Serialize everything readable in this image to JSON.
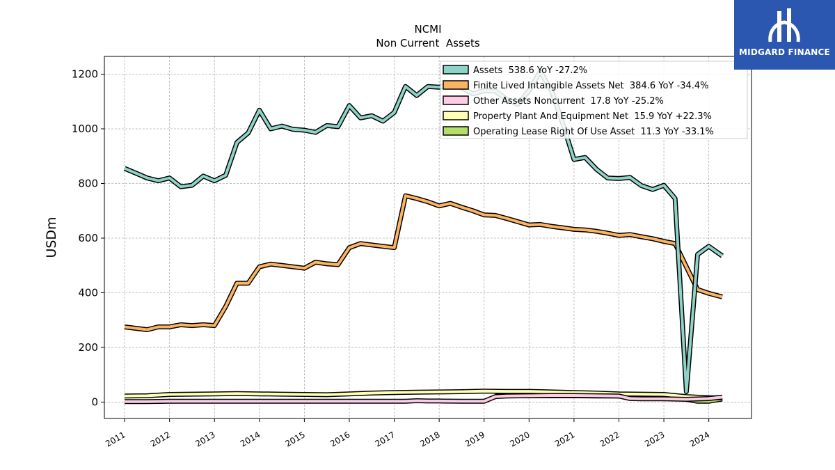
{
  "chart_data": {
    "type": "line",
    "title": "NCMI",
    "subtitle": "Non Current  Assets",
    "ylabel": "USDm",
    "xlabel": "",
    "xlim": [
      2010.55,
      2024.95
    ],
    "ylim": [
      -60,
      1265
    ],
    "yticks": [
      0,
      200,
      400,
      600,
      800,
      1000,
      1200
    ],
    "xticks": [
      "2011",
      "2012",
      "2013",
      "2014",
      "2015",
      "2016",
      "2017",
      "2018",
      "2019",
      "2020",
      "2021",
      "2022",
      "2023",
      "2024"
    ],
    "grid": true,
    "legend_position": "top-right",
    "series": [
      {
        "name": "Assets  538.6 YoY -27.2%",
        "color": "#8dd3c7",
        "points": [
          [
            2011.0,
            855
          ],
          [
            2011.25,
            838
          ],
          [
            2011.5,
            820
          ],
          [
            2011.75,
            810
          ],
          [
            2012.0,
            820
          ],
          [
            2012.25,
            788
          ],
          [
            2012.5,
            793
          ],
          [
            2012.75,
            827
          ],
          [
            2013.0,
            810
          ],
          [
            2013.25,
            830
          ],
          [
            2013.5,
            950
          ],
          [
            2013.75,
            985
          ],
          [
            2014.0,
            1068
          ],
          [
            2014.25,
            1000
          ],
          [
            2014.5,
            1010
          ],
          [
            2014.75,
            998
          ],
          [
            2015.0,
            995
          ],
          [
            2015.25,
            987
          ],
          [
            2015.5,
            1012
          ],
          [
            2015.75,
            1008
          ],
          [
            2016.0,
            1085
          ],
          [
            2016.25,
            1040
          ],
          [
            2016.5,
            1048
          ],
          [
            2016.75,
            1028
          ],
          [
            2017.0,
            1060
          ],
          [
            2017.25,
            1155
          ],
          [
            2017.5,
            1122
          ],
          [
            2017.75,
            1155
          ],
          [
            2018.0,
            1152
          ],
          [
            2018.25,
            1165
          ],
          [
            2018.5,
            1150
          ],
          [
            2018.75,
            1128
          ],
          [
            2019.0,
            1140
          ],
          [
            2019.25,
            1138
          ],
          [
            2019.5,
            1108
          ],
          [
            2019.75,
            1090
          ],
          [
            2020.0,
            1140
          ],
          [
            2020.25,
            1210
          ],
          [
            2020.5,
            1140
          ],
          [
            2020.75,
            1020
          ],
          [
            2021.0,
            888
          ],
          [
            2021.25,
            895
          ],
          [
            2021.5,
            852
          ],
          [
            2021.75,
            820
          ],
          [
            2022.0,
            818
          ],
          [
            2022.25,
            822
          ],
          [
            2022.5,
            792
          ],
          [
            2022.75,
            778
          ],
          [
            2023.0,
            793
          ],
          [
            2023.25,
            745
          ],
          [
            2023.5,
            38
          ],
          [
            2023.75,
            540
          ],
          [
            2024.0,
            570
          ],
          [
            2024.3,
            535
          ]
        ]
      },
      {
        "name": "Finite Lived Intangible Assets Net  384.6 YoY -34.4%",
        "color": "#fdb462",
        "points": [
          [
            2011.0,
            275
          ],
          [
            2011.25,
            270
          ],
          [
            2011.5,
            265
          ],
          [
            2011.75,
            275
          ],
          [
            2012.0,
            275
          ],
          [
            2012.25,
            283
          ],
          [
            2012.5,
            280
          ],
          [
            2012.75,
            283
          ],
          [
            2013.0,
            280
          ],
          [
            2013.25,
            350
          ],
          [
            2013.5,
            435
          ],
          [
            2013.75,
            435
          ],
          [
            2014.0,
            495
          ],
          [
            2014.25,
            505
          ],
          [
            2014.5,
            500
          ],
          [
            2014.75,
            495
          ],
          [
            2015.0,
            490
          ],
          [
            2015.25,
            512
          ],
          [
            2015.5,
            506
          ],
          [
            2015.75,
            503
          ],
          [
            2016.0,
            565
          ],
          [
            2016.25,
            580
          ],
          [
            2016.5,
            575
          ],
          [
            2016.75,
            570
          ],
          [
            2017.0,
            565
          ],
          [
            2017.25,
            755
          ],
          [
            2017.5,
            745
          ],
          [
            2017.75,
            733
          ],
          [
            2018.0,
            718
          ],
          [
            2018.25,
            727
          ],
          [
            2018.5,
            713
          ],
          [
            2018.75,
            700
          ],
          [
            2019.0,
            685
          ],
          [
            2019.25,
            683
          ],
          [
            2019.5,
            672
          ],
          [
            2019.75,
            660
          ],
          [
            2020.0,
            648
          ],
          [
            2020.25,
            650
          ],
          [
            2020.5,
            643
          ],
          [
            2020.75,
            638
          ],
          [
            2021.0,
            632
          ],
          [
            2021.25,
            630
          ],
          [
            2021.5,
            625
          ],
          [
            2021.75,
            618
          ],
          [
            2022.0,
            610
          ],
          [
            2022.25,
            613
          ],
          [
            2022.5,
            605
          ],
          [
            2022.75,
            598
          ],
          [
            2023.0,
            588
          ],
          [
            2023.25,
            580
          ],
          [
            2023.5,
            495
          ],
          [
            2023.75,
            412
          ],
          [
            2024.0,
            398
          ],
          [
            2024.3,
            385
          ]
        ]
      },
      {
        "name": "Other Assets Noncurrent  17.8 YoY -25.2%",
        "color": "#fccde5",
        "points": [
          [
            2011.0,
            2
          ],
          [
            2011.5,
            2
          ],
          [
            2012.0,
            3
          ],
          [
            2012.5,
            3
          ],
          [
            2013.0,
            3
          ],
          [
            2013.5,
            3
          ],
          [
            2014.0,
            3
          ],
          [
            2014.5,
            3
          ],
          [
            2015.0,
            3
          ],
          [
            2015.5,
            3
          ],
          [
            2016.0,
            3
          ],
          [
            2016.5,
            3
          ],
          [
            2017.0,
            3
          ],
          [
            2017.25,
            3
          ],
          [
            2017.5,
            5
          ],
          [
            2017.75,
            4
          ],
          [
            2018.0,
            4
          ],
          [
            2018.5,
            3
          ],
          [
            2019.0,
            3
          ],
          [
            2019.25,
            20
          ],
          [
            2019.5,
            22
          ],
          [
            2020.0,
            23
          ],
          [
            2020.5,
            24
          ],
          [
            2021.0,
            24
          ],
          [
            2021.5,
            23
          ],
          [
            2022.0,
            22
          ],
          [
            2022.25,
            13
          ],
          [
            2022.5,
            12
          ],
          [
            2023.0,
            12
          ],
          [
            2023.5,
            10
          ],
          [
            2024.0,
            13
          ],
          [
            2024.3,
            18
          ]
        ]
      },
      {
        "name": "Property Plant And Equipment Net  15.9 YoY +22.3%",
        "color": "#ffffb3",
        "points": [
          [
            2011.0,
            22
          ],
          [
            2011.5,
            23
          ],
          [
            2012.0,
            28
          ],
          [
            2012.5,
            29
          ],
          [
            2013.0,
            30
          ],
          [
            2013.5,
            31
          ],
          [
            2014.0,
            30
          ],
          [
            2014.5,
            29
          ],
          [
            2015.0,
            28
          ],
          [
            2015.5,
            27
          ],
          [
            2016.0,
            30
          ],
          [
            2016.5,
            33
          ],
          [
            2017.0,
            35
          ],
          [
            2017.5,
            36
          ],
          [
            2018.0,
            37
          ],
          [
            2018.5,
            38
          ],
          [
            2019.0,
            40
          ],
          [
            2019.5,
            39
          ],
          [
            2020.0,
            39
          ],
          [
            2020.5,
            37
          ],
          [
            2021.0,
            35
          ],
          [
            2021.5,
            33
          ],
          [
            2022.0,
            30
          ],
          [
            2022.5,
            29
          ],
          [
            2023.0,
            28
          ],
          [
            2023.5,
            20
          ],
          [
            2024.0,
            16
          ],
          [
            2024.3,
            16
          ]
        ]
      },
      {
        "name": "Operating Lease Right Of Use Asset  11.3 YoY -33.1%",
        "color": "#b3de69",
        "points": [
          [
            2019.25,
            23
          ],
          [
            2019.5,
            23
          ],
          [
            2020.0,
            23
          ],
          [
            2020.5,
            23
          ],
          [
            2021.0,
            23
          ],
          [
            2021.5,
            22
          ],
          [
            2022.0,
            22
          ],
          [
            2022.5,
            21
          ],
          [
            2023.0,
            18
          ],
          [
            2023.25,
            16
          ],
          [
            2023.5,
            10
          ],
          [
            2023.75,
            3
          ],
          [
            2024.0,
            3
          ],
          [
            2024.3,
            11
          ]
        ]
      }
    ]
  },
  "logo": {
    "name": "midgard-finance-logo",
    "text": "MIDGARD FINANCE",
    "bg_color": "#2b57b0"
  }
}
